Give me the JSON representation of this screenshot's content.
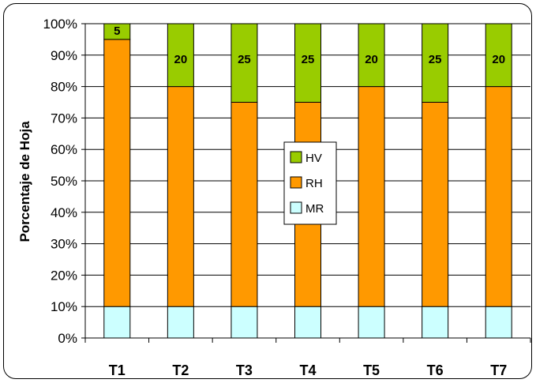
{
  "chart_data": {
    "type": "bar",
    "stacked": true,
    "categories": [
      "T1",
      "T2",
      "T3",
      "T4",
      "T5",
      "T6",
      "T7"
    ],
    "series": [
      {
        "name": "MR",
        "color": "#CCFFFF",
        "values": [
          10,
          10,
          10,
          10,
          10,
          10,
          10
        ]
      },
      {
        "name": "RH",
        "color": "#FF9900",
        "values": [
          85,
          70,
          65,
          65,
          70,
          65,
          70
        ]
      },
      {
        "name": "HV",
        "color": "#99CC00",
        "values": [
          5,
          20,
          25,
          25,
          20,
          25,
          20
        ]
      }
    ],
    "data_labels": {
      "series": "HV",
      "values": [
        "5",
        "20",
        "25",
        "25",
        "20",
        "25",
        "20"
      ]
    },
    "yticks": [
      "0%",
      "10%",
      "20%",
      "30%",
      "40%",
      "50%",
      "60%",
      "70%",
      "80%",
      "90%",
      "100%"
    ],
    "ylim": [
      0,
      100
    ],
    "ylabel": "Porcentaje de Hoja",
    "xlabel": "",
    "title": "",
    "grid": true,
    "legend": {
      "position": "center",
      "order": [
        "HV",
        "RH",
        "MR"
      ]
    }
  }
}
